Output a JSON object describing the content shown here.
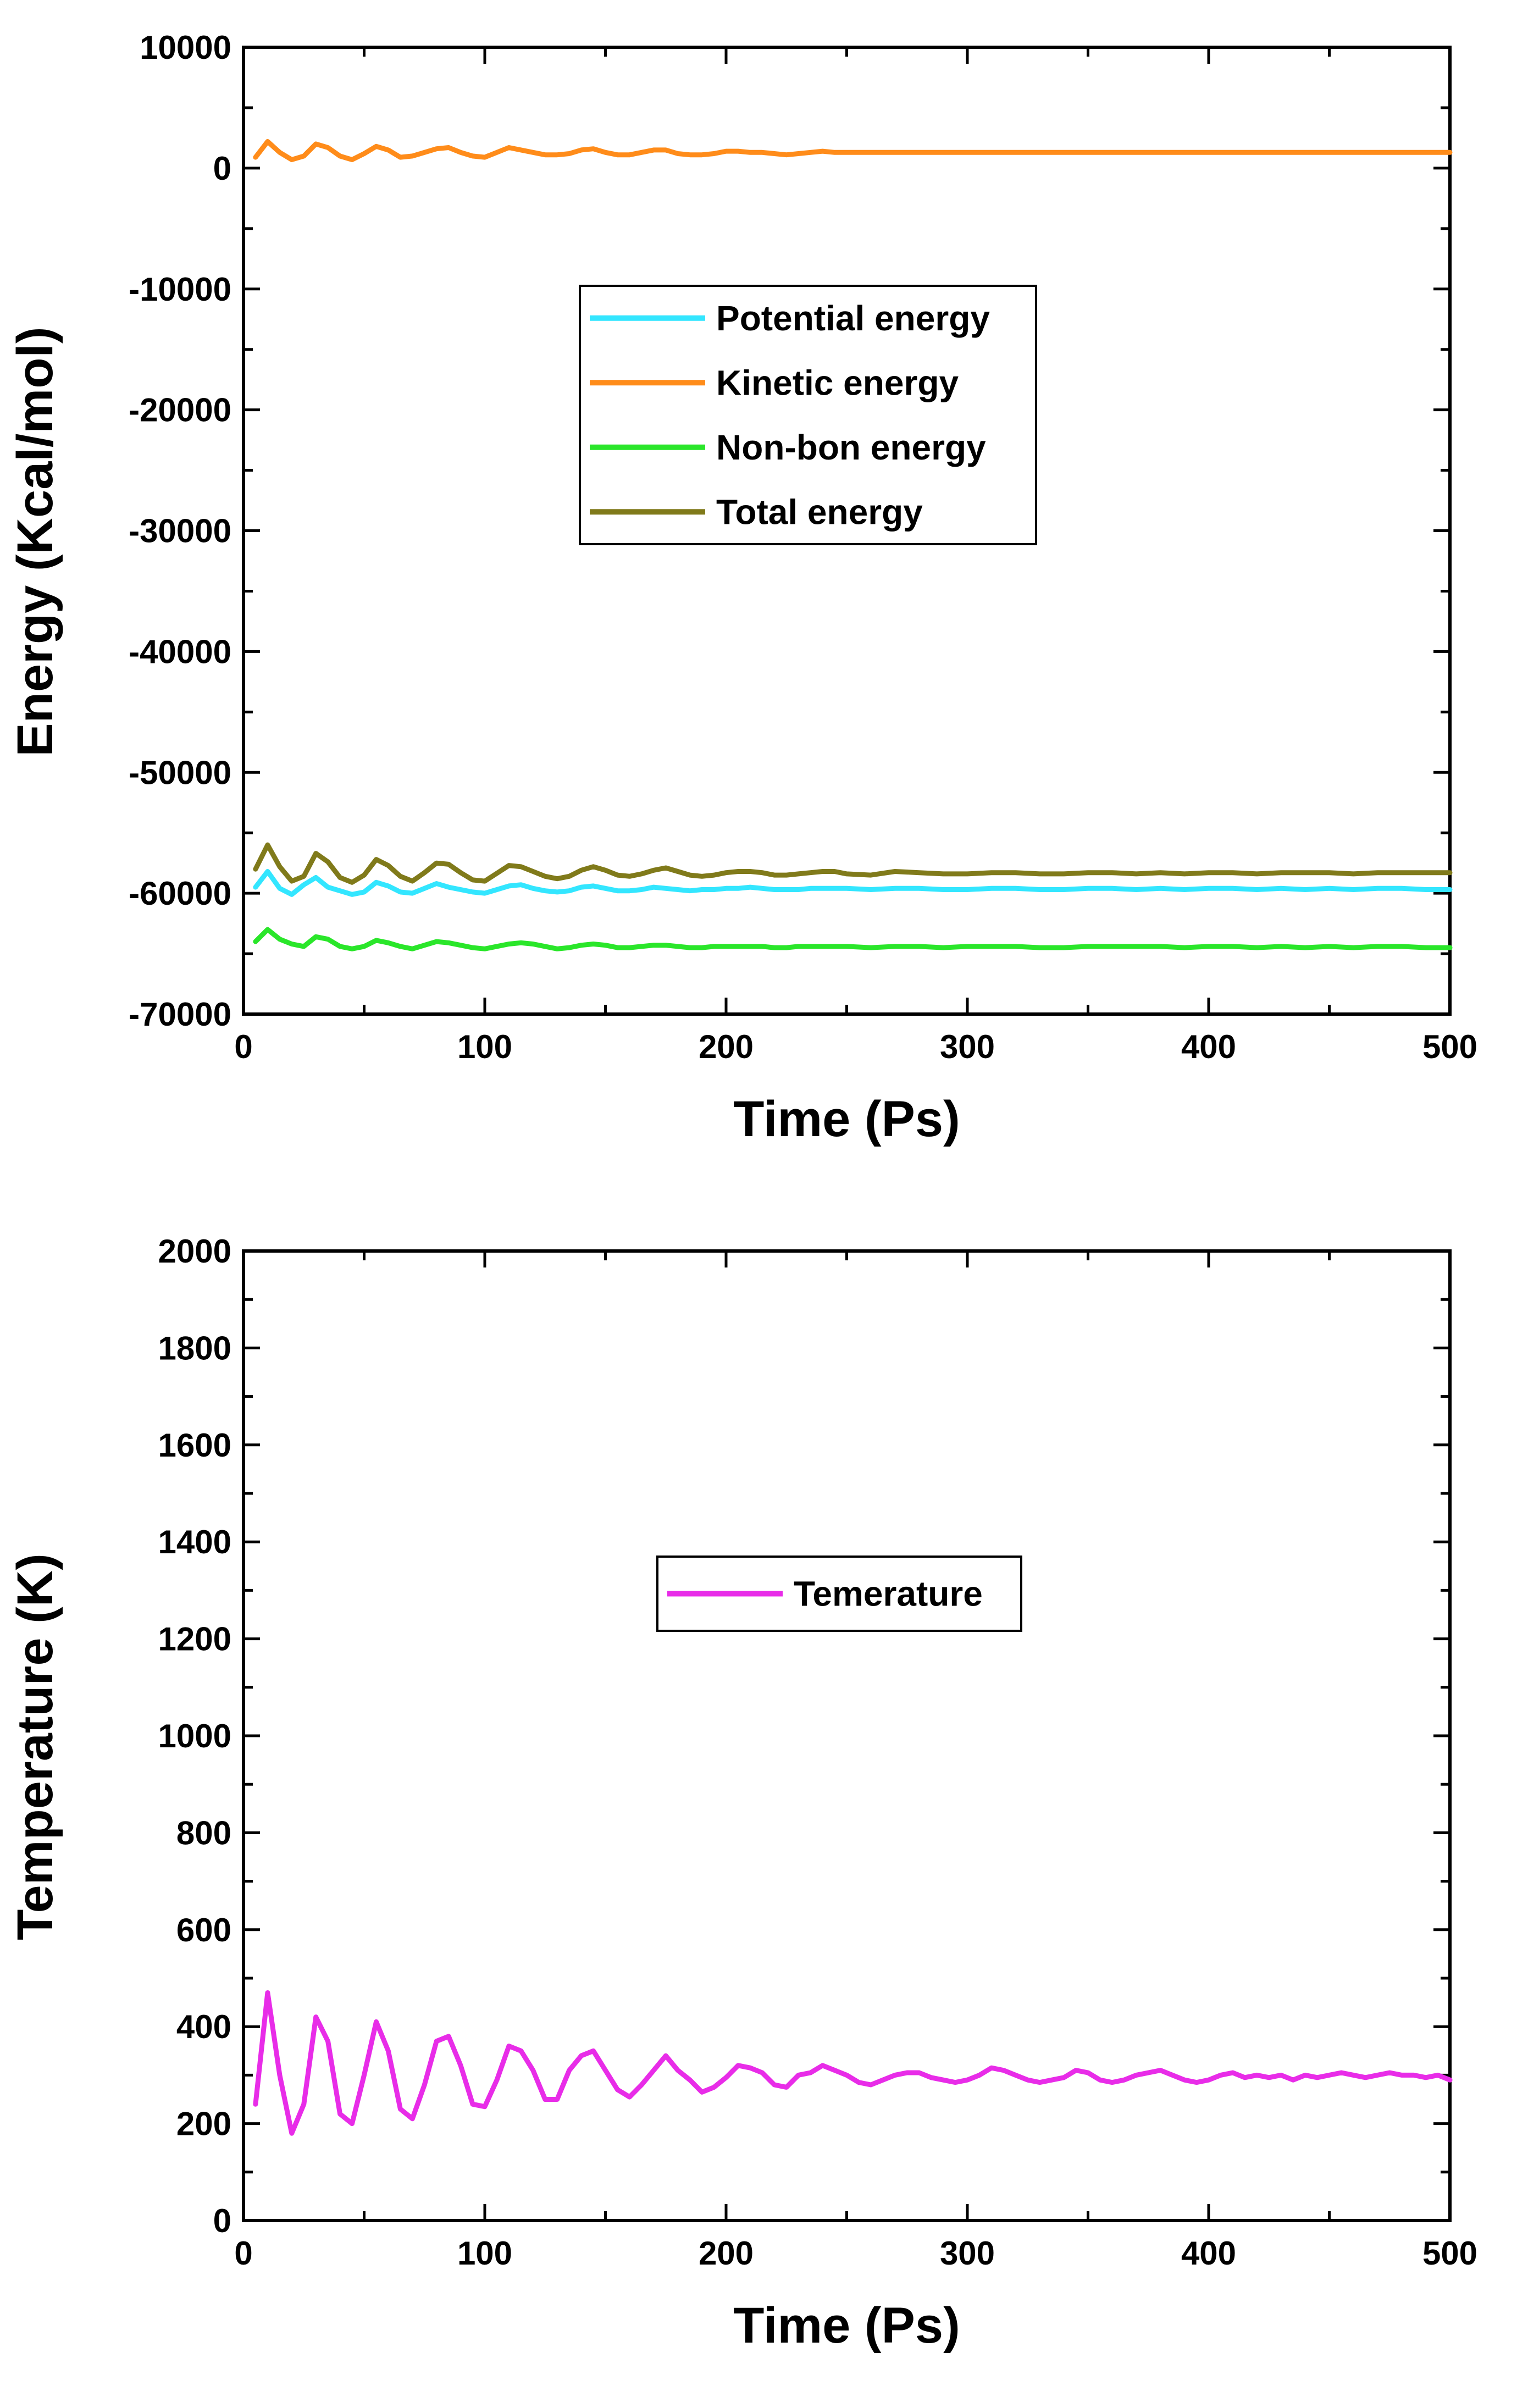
{
  "chart_data": [
    {
      "type": "line",
      "title": "",
      "xlabel": "Time (Ps)",
      "ylabel": "Energy (Kcal/mol)",
      "xlim": [
        0,
        500
      ],
      "ylim": [
        -70000,
        10000
      ],
      "x_ticks": [
        0,
        100,
        200,
        300,
        400,
        500
      ],
      "x_tick_labels": [
        "0",
        "100",
        "200",
        "300",
        "400",
        "500"
      ],
      "y_ticks": [
        -70000,
        -60000,
        -50000,
        -40000,
        -30000,
        -20000,
        -10000,
        0,
        10000
      ],
      "y_tick_labels": [
        "-70000",
        "-60000",
        "-50000",
        "-40000",
        "-30000",
        "-20000",
        "-10000",
        "0",
        "10000"
      ],
      "grid": false,
      "legend_position": "upper-center",
      "x": [
        5,
        10,
        15,
        20,
        25,
        30,
        35,
        40,
        45,
        50,
        55,
        60,
        65,
        70,
        75,
        80,
        85,
        90,
        95,
        100,
        110,
        115,
        120,
        125,
        130,
        135,
        140,
        145,
        150,
        155,
        160,
        165,
        170,
        175,
        180,
        185,
        190,
        195,
        200,
        205,
        210,
        215,
        220,
        225,
        230,
        235,
        240,
        245,
        250,
        260,
        270,
        280,
        290,
        300,
        310,
        320,
        330,
        340,
        350,
        360,
        370,
        380,
        390,
        400,
        410,
        420,
        430,
        440,
        450,
        460,
        470,
        480,
        490,
        500
      ],
      "series": [
        {
          "name": "Potential energy",
          "color": "#33e6ff",
          "values": [
            -59500,
            -58200,
            -59600,
            -60100,
            -59300,
            -58700,
            -59500,
            -59800,
            -60100,
            -59900,
            -59100,
            -59400,
            -59900,
            -60000,
            -59600,
            -59200,
            -59500,
            -59700,
            -59900,
            -60000,
            -59400,
            -59300,
            -59600,
            -59800,
            -59900,
            -59800,
            -59500,
            -59400,
            -59600,
            -59800,
            -59800,
            -59700,
            -59500,
            -59600,
            -59700,
            -59800,
            -59700,
            -59700,
            -59600,
            -59600,
            -59500,
            -59600,
            -59700,
            -59700,
            -59700,
            -59600,
            -59600,
            -59600,
            -59600,
            -59700,
            -59600,
            -59600,
            -59700,
            -59700,
            -59600,
            -59600,
            -59700,
            -59700,
            -59600,
            -59600,
            -59700,
            -59600,
            -59700,
            -59600,
            -59600,
            -59700,
            -59600,
            -59700,
            -59600,
            -59700,
            -59600,
            -59600,
            -59700,
            -59700
          ]
        },
        {
          "name": "Kinetic energy",
          "color": "#ff8c1a",
          "values": [
            900,
            2200,
            1300,
            700,
            1000,
            2000,
            1700,
            1000,
            700,
            1200,
            1800,
            1500,
            900,
            1000,
            1300,
            1600,
            1700,
            1300,
            1000,
            900,
            1700,
            1500,
            1300,
            1100,
            1100,
            1200,
            1500,
            1600,
            1300,
            1100,
            1100,
            1300,
            1500,
            1500,
            1200,
            1100,
            1100,
            1200,
            1400,
            1400,
            1300,
            1300,
            1200,
            1100,
            1200,
            1300,
            1400,
            1300,
            1300,
            1300,
            1300,
            1300,
            1300,
            1300,
            1300,
            1300,
            1300,
            1300,
            1300,
            1300,
            1300,
            1300,
            1300,
            1300,
            1300,
            1300,
            1300,
            1300,
            1300,
            1300,
            1300,
            1300,
            1300,
            1300
          ]
        },
        {
          "name": "Non-bon energy",
          "color": "#2ae62a",
          "values": [
            -64000,
            -63000,
            -63800,
            -64200,
            -64400,
            -63600,
            -63800,
            -64400,
            -64600,
            -64400,
            -63900,
            -64100,
            -64400,
            -64600,
            -64300,
            -64000,
            -64100,
            -64300,
            -64500,
            -64600,
            -64200,
            -64100,
            -64200,
            -64400,
            -64600,
            -64500,
            -64300,
            -64200,
            -64300,
            -64500,
            -64500,
            -64400,
            -64300,
            -64300,
            -64400,
            -64500,
            -64500,
            -64400,
            -64400,
            -64400,
            -64400,
            -64400,
            -64500,
            -64500,
            -64400,
            -64400,
            -64400,
            -64400,
            -64400,
            -64500,
            -64400,
            -64400,
            -64500,
            -64400,
            -64400,
            -64400,
            -64500,
            -64500,
            -64400,
            -64400,
            -64400,
            -64400,
            -64500,
            -64400,
            -64400,
            -64500,
            -64400,
            -64500,
            -64400,
            -64500,
            -64400,
            -64400,
            -64500,
            -64500
          ]
        },
        {
          "name": "Total energy",
          "color": "#807a1a",
          "values": [
            -58000,
            -56000,
            -57800,
            -59000,
            -58600,
            -56700,
            -57400,
            -58700,
            -59100,
            -58500,
            -57200,
            -57700,
            -58600,
            -59000,
            -58300,
            -57500,
            -57600,
            -58300,
            -58900,
            -59000,
            -57700,
            -57800,
            -58200,
            -58600,
            -58800,
            -58600,
            -58100,
            -57800,
            -58100,
            -58500,
            -58600,
            -58400,
            -58100,
            -57900,
            -58200,
            -58500,
            -58600,
            -58500,
            -58300,
            -58200,
            -58200,
            -58300,
            -58500,
            -58500,
            -58400,
            -58300,
            -58200,
            -58200,
            -58400,
            -58500,
            -58200,
            -58300,
            -58400,
            -58400,
            -58300,
            -58300,
            -58400,
            -58400,
            -58300,
            -58300,
            -58400,
            -58300,
            -58400,
            -58300,
            -58300,
            -58400,
            -58300,
            -58300,
            -58300,
            -58400,
            -58300,
            -58300,
            -58300,
            -58300
          ]
        }
      ]
    },
    {
      "type": "line",
      "title": "",
      "xlabel": "Time (Ps)",
      "ylabel": "Temperature (K)",
      "xlim": [
        0,
        500
      ],
      "ylim": [
        0,
        2000
      ],
      "x_ticks": [
        0,
        100,
        200,
        300,
        400,
        500
      ],
      "x_tick_labels": [
        "0",
        "100",
        "200",
        "300",
        "400",
        "500"
      ],
      "y_ticks": [
        0,
        200,
        400,
        600,
        800,
        1000,
        1200,
        1400,
        1600,
        1800,
        2000
      ],
      "y_tick_labels": [
        "0",
        "200",
        "400",
        "600",
        "800",
        "1000",
        "1200",
        "1400",
        "1600",
        "1800",
        "2000"
      ],
      "grid": false,
      "legend_position": "middle-center",
      "x": [
        5,
        10,
        15,
        20,
        25,
        30,
        35,
        40,
        45,
        50,
        55,
        60,
        65,
        70,
        75,
        80,
        85,
        90,
        95,
        100,
        105,
        110,
        115,
        120,
        125,
        130,
        135,
        140,
        145,
        150,
        155,
        160,
        165,
        170,
        175,
        180,
        185,
        190,
        195,
        200,
        205,
        210,
        215,
        220,
        225,
        230,
        235,
        240,
        245,
        250,
        255,
        260,
        265,
        270,
        275,
        280,
        285,
        290,
        295,
        300,
        305,
        310,
        315,
        320,
        325,
        330,
        335,
        340,
        345,
        350,
        355,
        360,
        365,
        370,
        375,
        380,
        385,
        390,
        395,
        400,
        405,
        410,
        415,
        420,
        425,
        430,
        435,
        440,
        445,
        450,
        455,
        460,
        465,
        470,
        475,
        480,
        485,
        490,
        495,
        500
      ],
      "series": [
        {
          "name": "Temerature",
          "color": "#e82ce8",
          "values": [
            240,
            470,
            300,
            180,
            240,
            420,
            370,
            220,
            200,
            300,
            410,
            350,
            230,
            210,
            280,
            370,
            380,
            320,
            240,
            235,
            290,
            360,
            350,
            310,
            250,
            250,
            310,
            340,
            350,
            310,
            270,
            255,
            280,
            310,
            340,
            310,
            290,
            265,
            275,
            295,
            320,
            315,
            305,
            280,
            275,
            300,
            305,
            320,
            310,
            300,
            285,
            280,
            290,
            300,
            305,
            305,
            295,
            290,
            285,
            290,
            300,
            315,
            310,
            300,
            290,
            285,
            290,
            295,
            310,
            305,
            290,
            285,
            290,
            300,
            305,
            310,
            300,
            290,
            285,
            290,
            300,
            305,
            295,
            300,
            295,
            300,
            290,
            300,
            295,
            300,
            305,
            300,
            295,
            300,
            305,
            300,
            300,
            295,
            300,
            290
          ]
        }
      ]
    }
  ]
}
